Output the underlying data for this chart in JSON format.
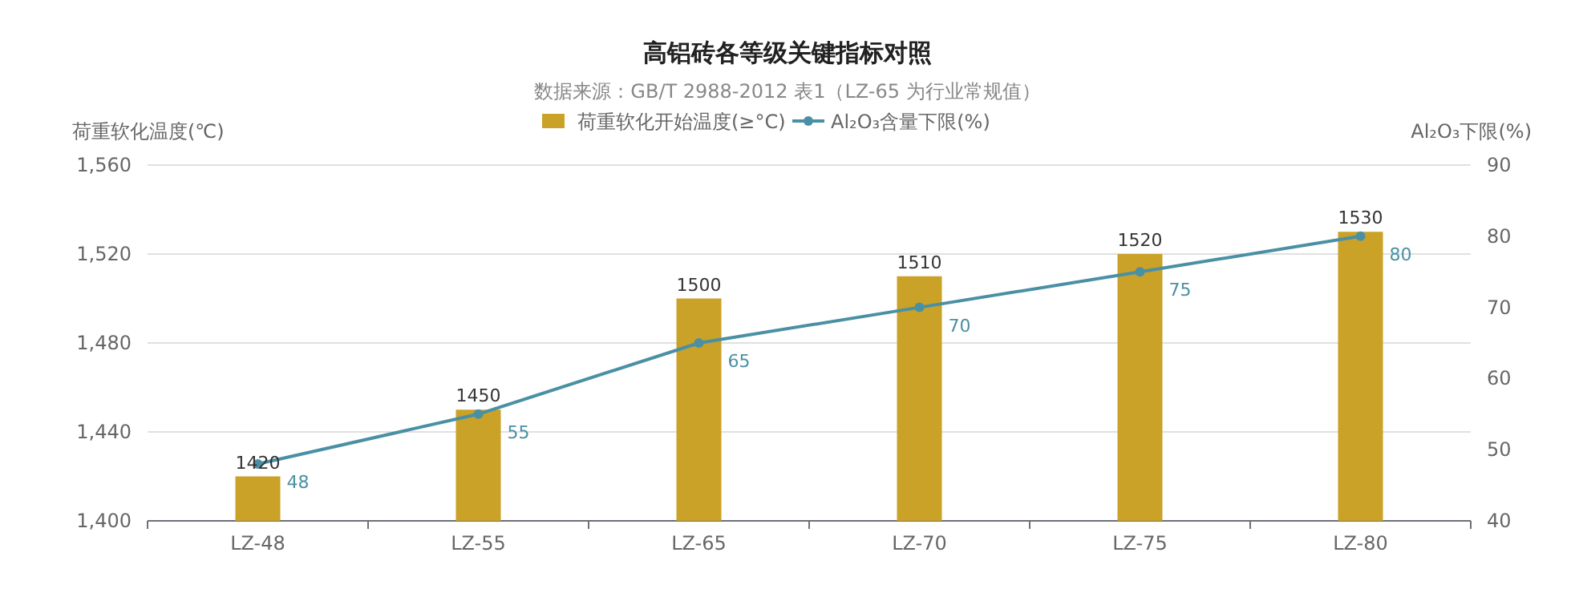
{
  "chart_data": {
    "type": "bar",
    "title": "高铝砖各等级关键指标对照",
    "subtitle": "数据来源：GB/T 2988-2012 表1（LZ-65 为行业常规值）",
    "ylabel": "荷重软化温度(℃)",
    "y2label": "Al₂O₃下限(%)",
    "categories": [
      "LZ-48",
      "LZ-55",
      "LZ-65",
      "LZ-70",
      "LZ-75",
      "LZ-80"
    ],
    "series": [
      {
        "name": "荷重软化开始温度(≥°C)",
        "color": "#c9a227",
        "values": [
          1420,
          1450,
          1500,
          1510,
          1520,
          1530
        ]
      },
      {
        "name": "Al₂O₃含量下限(%)",
        "type": "line",
        "axis": "y2",
        "color": "#4a90a4",
        "marker": "circle",
        "values": [
          48,
          55,
          65,
          70,
          75,
          80
        ]
      }
    ],
    "ylim": [
      1400,
      1560
    ],
    "yticks": [
      {
        "value": 1400,
        "label": "1,400"
      },
      {
        "value": 1440,
        "label": "1,440"
      },
      {
        "value": 1480,
        "label": "1,480"
      },
      {
        "value": 1520,
        "label": "1,520"
      },
      {
        "value": 1560,
        "label": "1,560"
      }
    ],
    "y2lim": [
      40,
      90
    ],
    "y2ticks": [
      40,
      50,
      60,
      70,
      80,
      90
    ],
    "grid": "y",
    "legend": "top",
    "data_labels": true
  }
}
